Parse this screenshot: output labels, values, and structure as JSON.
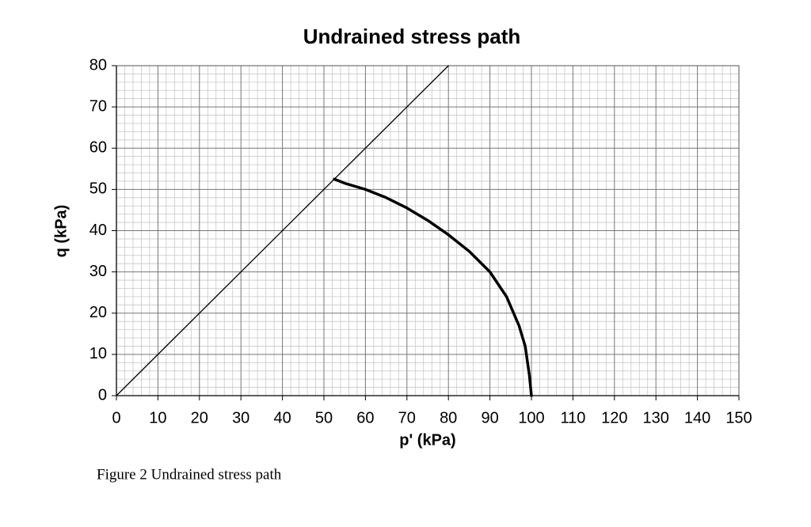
{
  "chart_data": {
    "type": "line",
    "title": "Undrained stress path",
    "x_label": "p' (kPa)",
    "y_label": "q (kPa)",
    "xlim": [
      0,
      150
    ],
    "ylim": [
      0,
      80
    ],
    "xticks": [
      0,
      10,
      20,
      30,
      40,
      50,
      60,
      70,
      80,
      90,
      100,
      110,
      120,
      130,
      140,
      150
    ],
    "yticks": [
      0,
      10,
      20,
      30,
      40,
      50,
      60,
      70,
      80
    ],
    "grid": true,
    "minor_subdivisions": 5,
    "series": [
      {
        "color": "#000000",
        "line_width": 1.3,
        "x": [
          0,
          80
        ],
        "values": [
          0,
          80
        ]
      },
      {
        "color": "#000000",
        "line_width": 3.5,
        "x": [
          100,
          99.5,
          98.5,
          97,
          94,
          90,
          85,
          80,
          75,
          70,
          65,
          60,
          55,
          52.5
        ],
        "values": [
          0,
          5,
          12,
          17,
          24,
          30,
          35,
          39,
          42.5,
          45.5,
          48,
          50,
          51.5,
          52.5
        ]
      }
    ],
    "caption": "Figure 2 Undrained stress path"
  }
}
